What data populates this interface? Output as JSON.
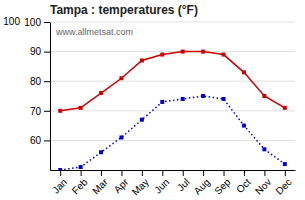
{
  "chart_data": {
    "type": "line",
    "title": "Tampa : temperatures (°F)",
    "categories": [
      "Jan",
      "Feb",
      "Mar",
      "Apr",
      "May",
      "Jun",
      "Jul",
      "Aug",
      "Sep",
      "Oct",
      "Nov",
      "Dec"
    ],
    "series": [
      {
        "color": "#cc0000",
        "marker": "square",
        "line_style": "solid",
        "values": [
          70,
          71,
          76,
          81,
          87,
          89,
          90,
          90,
          89,
          83,
          75,
          71
        ]
      },
      {
        "color": "#0000cc",
        "marker": "square",
        "line_style": "dotted",
        "values": [
          50,
          51,
          56,
          61,
          67,
          73,
          74,
          75,
          74,
          65,
          57,
          52
        ]
      }
    ],
    "ylim": [
      50,
      100
    ],
    "yticks": [
      60,
      70,
      80,
      90,
      100
    ],
    "grid": true,
    "annotations": [
      "100",
      "www.allmetsat.com"
    ]
  }
}
